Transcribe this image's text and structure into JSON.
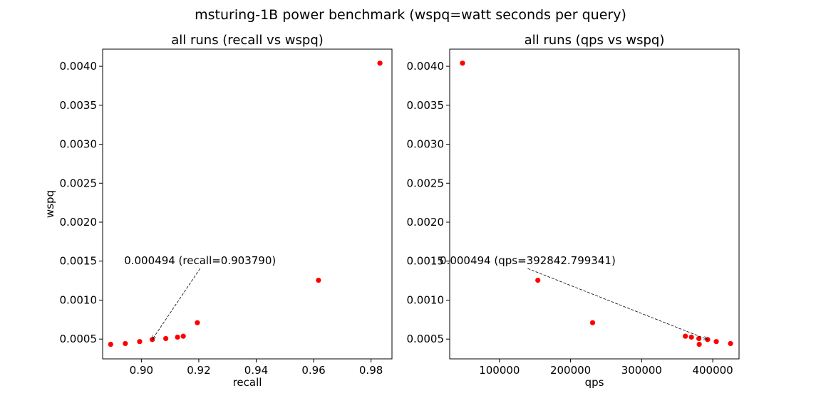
{
  "figure": {
    "suptitle": "msturing-1B power benchmark (wspq=watt seconds per query)"
  },
  "chart_data": [
    {
      "type": "scatter",
      "title": "all runs (recall vs wspq)",
      "xlabel": "recall",
      "ylabel": "wspq",
      "xlim": [
        0.8865,
        0.9873
      ],
      "ylim": [
        0.000246,
        0.00422
      ],
      "xticks": [
        0.9,
        0.92,
        0.94,
        0.96,
        0.98
      ],
      "xtick_labels": [
        "0.90",
        "0.92",
        "0.94",
        "0.96",
        "0.98"
      ],
      "yticks": [
        0.0005,
        0.001,
        0.0015,
        0.002,
        0.0025,
        0.003,
        0.0035,
        0.004
      ],
      "ytick_labels": [
        "0.0005",
        "0.0010",
        "0.0015",
        "0.0020",
        "0.0025",
        "0.0030",
        "0.0035",
        "0.0040"
      ],
      "grid": false,
      "marker_color": "#ff0000",
      "points": [
        {
          "x": 0.8893,
          "y": 0.000433
        },
        {
          "x": 0.8944,
          "y": 0.000443
        },
        {
          "x": 0.8994,
          "y": 0.000468
        },
        {
          "x": 0.90379,
          "y": 0.000494
        },
        {
          "x": 0.9085,
          "y": 0.000507
        },
        {
          "x": 0.9126,
          "y": 0.000525
        },
        {
          "x": 0.9146,
          "y": 0.000537
        },
        {
          "x": 0.9195,
          "y": 0.00071
        },
        {
          "x": 0.9617,
          "y": 0.001255
        },
        {
          "x": 0.9831,
          "y": 0.00404
        }
      ],
      "annotation": {
        "text": "0.000494 (recall=0.903790)",
        "target": {
          "x": 0.90379,
          "y": 0.000494
        },
        "text_pos": {
          "x": 0.894,
          "y": 0.00146
        }
      }
    },
    {
      "type": "scatter",
      "title": "all runs (qps vs wspq)",
      "xlabel": "qps",
      "ylabel": "",
      "xlim": [
        30000,
        437000
      ],
      "ylim": [
        0.000246,
        0.00422
      ],
      "xticks": [
        100000,
        200000,
        300000,
        400000
      ],
      "xtick_labels": [
        "100000",
        "200000",
        "300000",
        "400000"
      ],
      "yticks": [
        0.0005,
        0.001,
        0.0015,
        0.002,
        0.0025,
        0.003,
        0.0035,
        0.004
      ],
      "ytick_labels": [
        "0.0005",
        "0.0010",
        "0.0015",
        "0.0020",
        "0.0025",
        "0.0030",
        "0.0035",
        "0.0040"
      ],
      "grid": false,
      "marker_color": "#ff0000",
      "points": [
        {
          "x": 48000,
          "y": 0.00404
        },
        {
          "x": 154000,
          "y": 0.001255
        },
        {
          "x": 231000,
          "y": 0.00071
        },
        {
          "x": 361500,
          "y": 0.000537
        },
        {
          "x": 370000,
          "y": 0.000525
        },
        {
          "x": 380500,
          "y": 0.000507
        },
        {
          "x": 381000,
          "y": 0.000433
        },
        {
          "x": 392842.799341,
          "y": 0.000494
        },
        {
          "x": 405000,
          "y": 0.000468
        },
        {
          "x": 425000,
          "y": 0.000443
        }
      ],
      "annotation": {
        "text": "0.000494 (qps=392842.799341)",
        "target": {
          "x": 392842.799341,
          "y": 0.000494
        },
        "text_pos": {
          "x": 16000,
          "y": 0.00146
        }
      }
    }
  ]
}
